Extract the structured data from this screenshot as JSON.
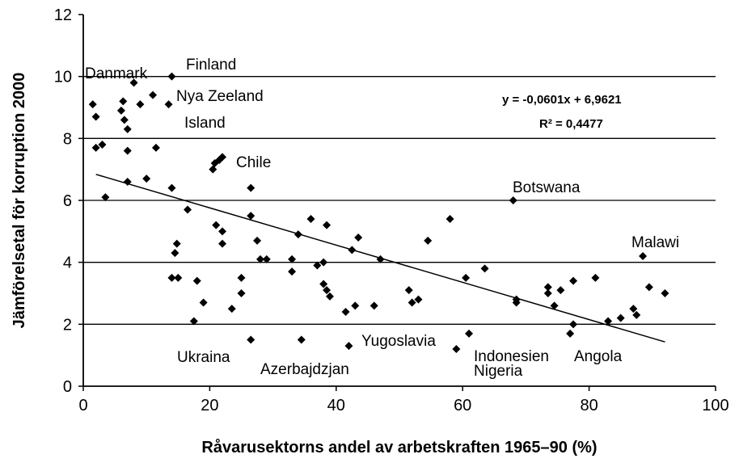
{
  "chart_data": {
    "type": "scatter",
    "xlabel": "Råvarusektorns andel av arbetskraften 1965–90 (%)",
    "ylabel": "Jämförelsetal för korruption 2000",
    "xlim": [
      0,
      100
    ],
    "xticks": [
      0,
      20,
      40,
      60,
      80,
      100
    ],
    "ylim": [
      0,
      12
    ],
    "yticks": [
      0,
      2,
      4,
      6,
      8,
      10,
      12
    ],
    "grid": true,
    "color": "#000000",
    "x": [
      1.5,
      2,
      2,
      3,
      3.5,
      6,
      6.3,
      6.5,
      7,
      7,
      7,
      8,
      9,
      10,
      11,
      11.5,
      13.5,
      14,
      14,
      14,
      14.5,
      14.8,
      15,
      16.5,
      17.5,
      18,
      19,
      20.5,
      20.8,
      21,
      21.5,
      22,
      22,
      22,
      23.5,
      25,
      25,
      26.5,
      26.5,
      26.5,
      27.5,
      28,
      29,
      33,
      33,
      34,
      34.5,
      36,
      37,
      38,
      38,
      38.5,
      38.5,
      39,
      41.5,
      42,
      42.5,
      43,
      43.5,
      46,
      47,
      51.5,
      52,
      53,
      54.5,
      58,
      59,
      60.5,
      61,
      63.5,
      68,
      68.5,
      68.5,
      73.5,
      73.5,
      74.5,
      75.5,
      77,
      77.5,
      77.5,
      81,
      83,
      85,
      87,
      87.5,
      88.5,
      89.5,
      92
    ],
    "values": [
      9.1,
      7.7,
      8.7,
      7.8,
      6.1,
      8.9,
      9.2,
      8.6,
      8.3,
      7.6,
      6.6,
      9.8,
      9.1,
      6.7,
      9.4,
      7.7,
      9.1,
      10.0,
      6.4,
      3.5,
      4.3,
      4.6,
      3.5,
      5.7,
      2.1,
      3.4,
      2.7,
      7.0,
      7.2,
      5.2,
      7.3,
      7.4,
      5.0,
      4.6,
      2.5,
      3.5,
      3.0,
      6.4,
      5.5,
      1.5,
      4.7,
      4.1,
      4.1,
      4.1,
      3.7,
      4.9,
      1.5,
      5.4,
      3.9,
      4.0,
      3.3,
      5.2,
      3.1,
      2.9,
      2.4,
      1.3,
      4.4,
      2.6,
      4.8,
      2.6,
      4.1,
      3.1,
      2.7,
      2.8,
      4.7,
      5.4,
      1.2,
      3.5,
      1.7,
      3.8,
      6.0,
      2.7,
      2.8,
      3.2,
      3.0,
      2.6,
      3.1,
      1.7,
      3.4,
      2.0,
      3.5,
      2.1,
      2.2,
      2.5,
      2.3,
      4.2,
      3.2,
      3.0
    ],
    "trendline": {
      "x": [
        2,
        92
      ],
      "y": [
        6.84,
        1.43
      ]
    },
    "equation": "y = -0,0601x + 6,9621",
    "r_squared": "R² = 0,4477",
    "annotations": [
      "Danmark",
      "Finland",
      "Nya Zeeland",
      "Island",
      "Chile",
      "Botswana",
      "Malawi",
      "Ukraina",
      "Azerbajdzjan",
      "Yugoslavia",
      "Indonesien",
      "Angola",
      "Nigeria"
    ]
  }
}
